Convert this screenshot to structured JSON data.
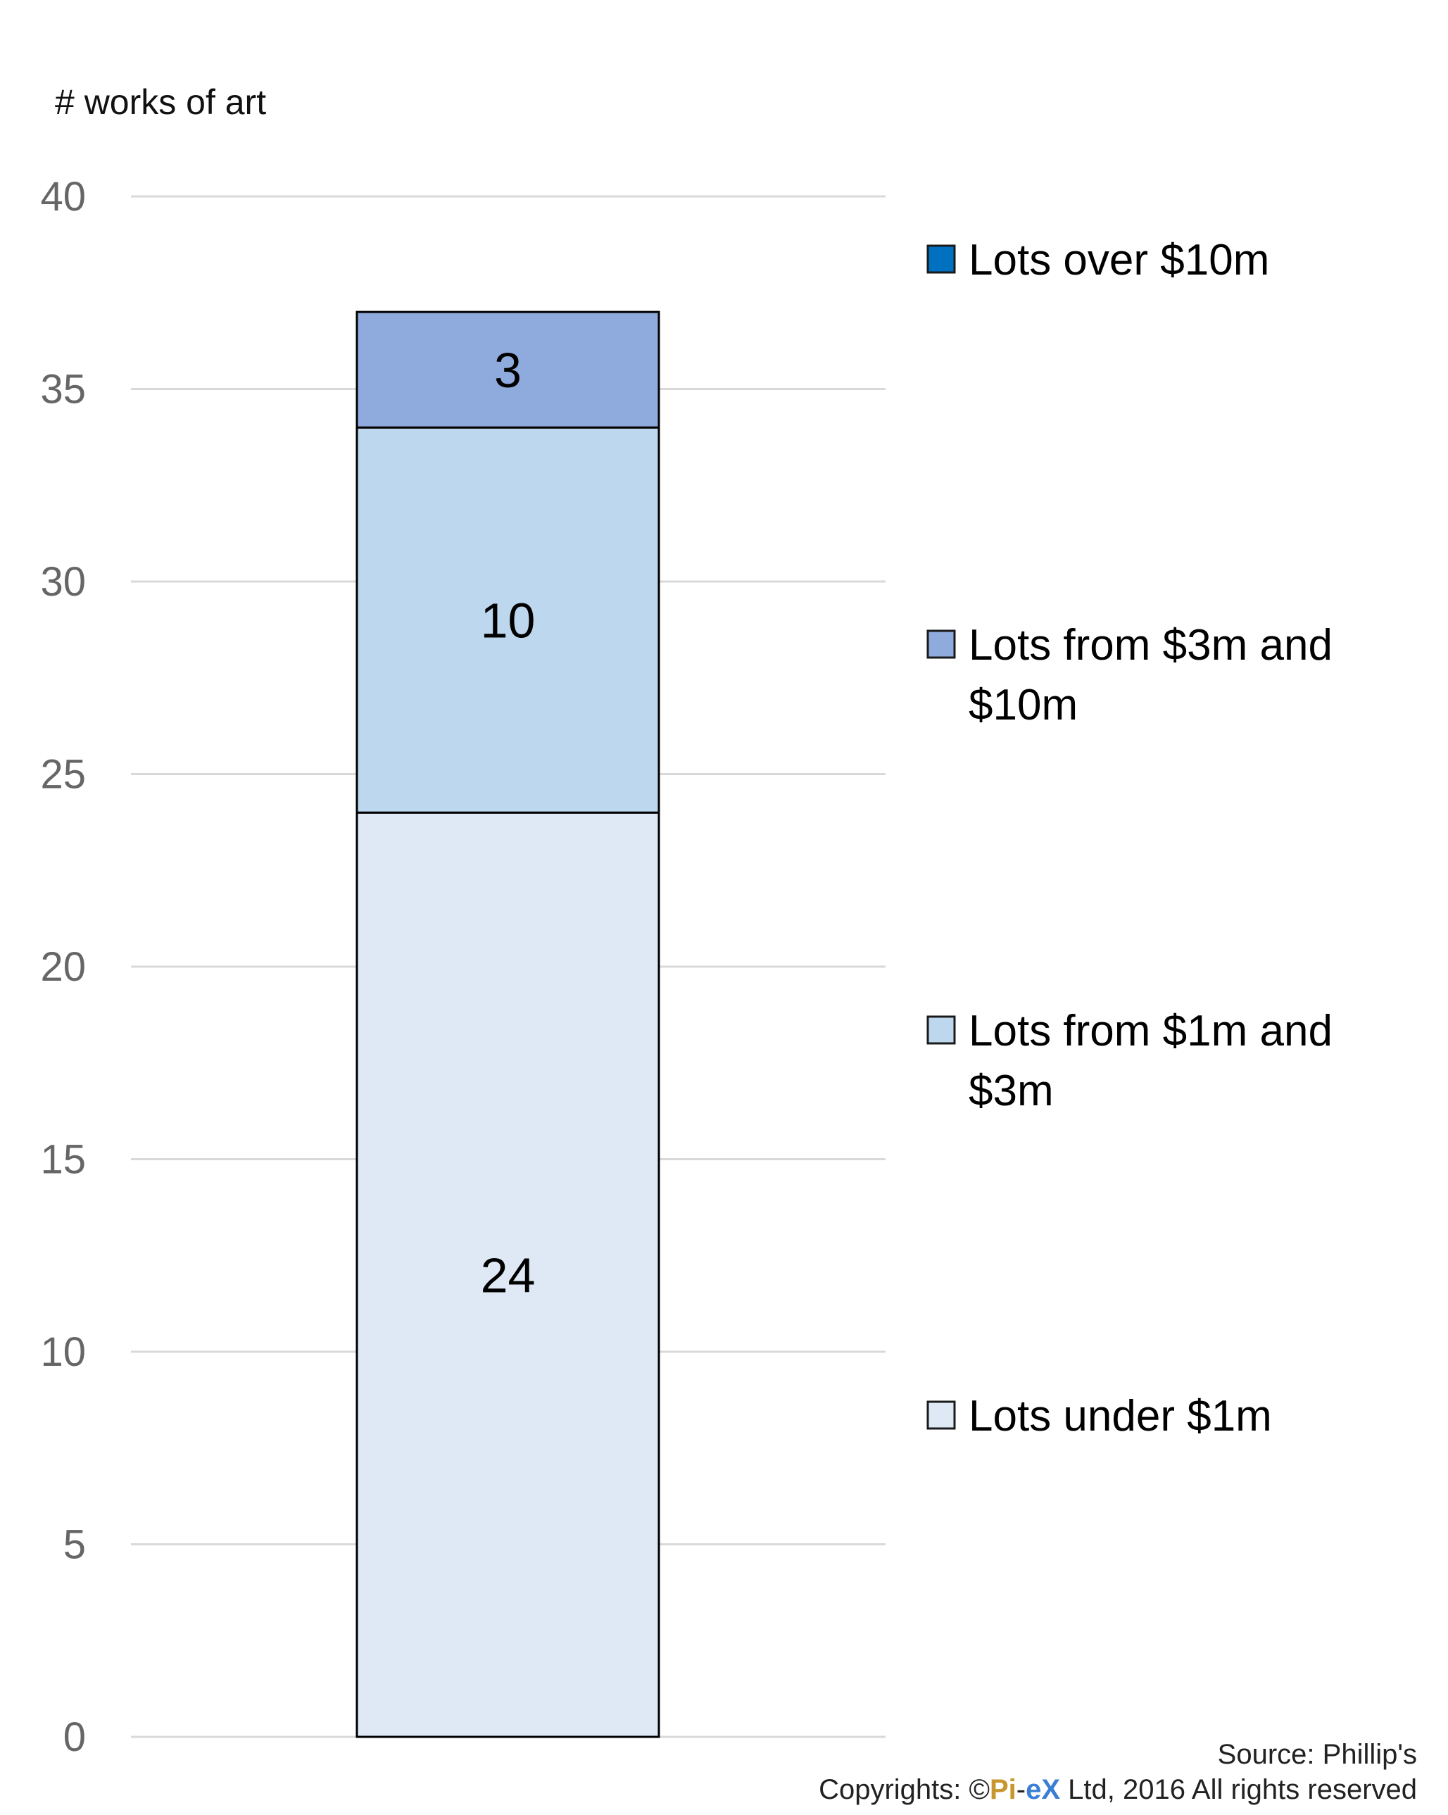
{
  "chart_data": {
    "type": "bar",
    "stacked": true,
    "ylabel": "# works of art",
    "ylim": [
      0,
      40
    ],
    "yticks": [
      0,
      5,
      10,
      15,
      20,
      25,
      30,
      35,
      40
    ],
    "grid": true,
    "legend_position": "right",
    "series": [
      {
        "name": "Lots under $1m",
        "values": [
          24
        ],
        "color": "#dfe9f5"
      },
      {
        "name": "Lots from $1m and $3m",
        "values": [
          10
        ],
        "color": "#bdd7ee"
      },
      {
        "name": "Lots from $3m and $10m",
        "values": [
          3
        ],
        "color": "#8faadc"
      },
      {
        "name": "Lots over $10m",
        "values": [
          0
        ],
        "color": "#0070c0"
      }
    ],
    "legend_order": [
      "Lots over $10m",
      "Lots from $3m and $10m",
      "Lots from $1m and $3m",
      "Lots under $1m"
    ],
    "legend_lines": {
      "Lots over $10m": [
        "Lots over $10m"
      ],
      "Lots from $3m and $10m": [
        "Lots from $3m and",
        "$10m"
      ],
      "Lots from $1m and $3m": [
        "Lots from $1m and",
        "$3m"
      ],
      "Lots under $1m": [
        "Lots under $1m"
      ]
    }
  },
  "footer": {
    "source": "Source: Phillip's",
    "copyright_prefix": "Copyrights: ©",
    "brand_pi": "Pi",
    "brand_dash": "-",
    "brand_ex": "eX",
    "copyright_suffix": " Ltd, 2016 All rights reserved"
  }
}
